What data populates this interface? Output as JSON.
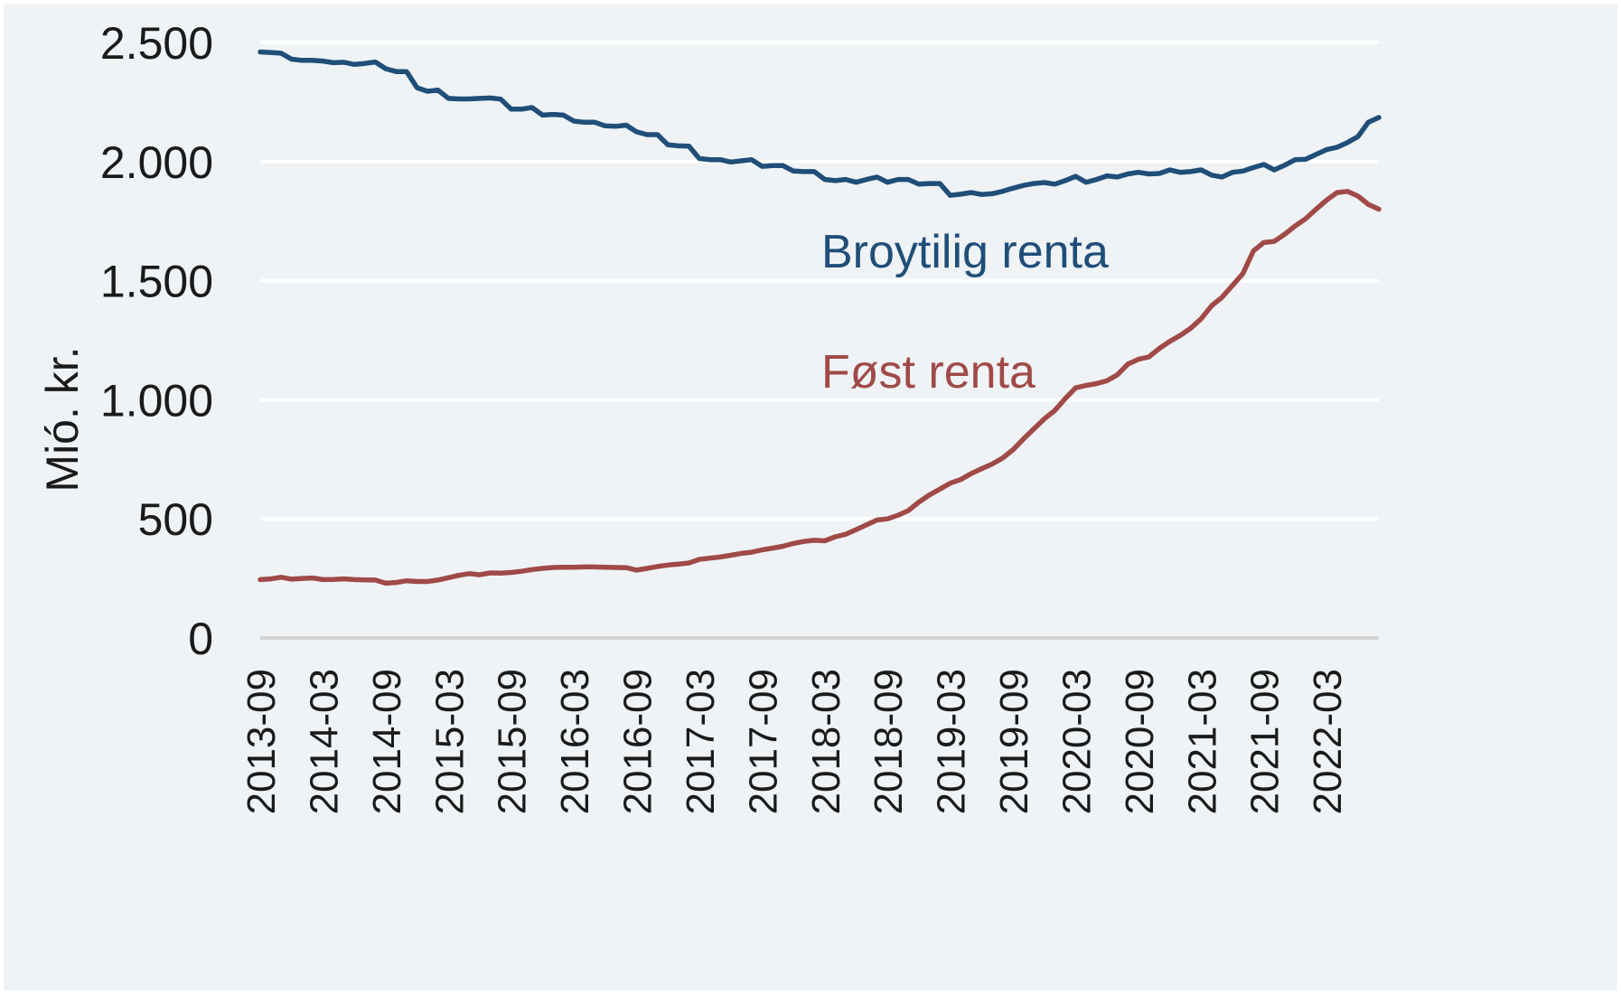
{
  "chart_data": {
    "type": "line",
    "title": "",
    "xlabel": "",
    "ylabel": "Mió. kr.",
    "ylim": [
      0,
      2500
    ],
    "yticks": [
      0,
      500,
      1000,
      1500,
      2000,
      2500
    ],
    "ytick_labels": [
      "0",
      "500",
      "1.000",
      "1.500",
      "2.000",
      "2.500"
    ],
    "xtick_labels": [
      "2013-09",
      "2014-03",
      "2014-09",
      "2015-03",
      "2015-09",
      "2016-03",
      "2016-09",
      "2017-03",
      "2017-09",
      "2018-03",
      "2018-09",
      "2019-03",
      "2019-09",
      "2020-03",
      "2020-09",
      "2021-03",
      "2021-09",
      "2022-03"
    ],
    "grid": true,
    "legend": "none",
    "x_start": "2013-09",
    "x_end": "2022-08",
    "series": [
      {
        "name": "Broytilig renta",
        "color": "#1f4e79",
        "values": [
          2460,
          2458,
          2455,
          2430,
          2425,
          2425,
          2422,
          2415,
          2417,
          2408,
          2412,
          2418,
          2390,
          2378,
          2378,
          2310,
          2295,
          2300,
          2265,
          2263,
          2263,
          2265,
          2267,
          2262,
          2220,
          2220,
          2227,
          2195,
          2198,
          2195,
          2170,
          2165,
          2165,
          2150,
          2148,
          2153,
          2125,
          2113,
          2113,
          2070,
          2066,
          2065,
          2013,
          2008,
          2008,
          1998,
          2003,
          2008,
          1980,
          1983,
          1983,
          1960,
          1958,
          1958,
          1925,
          1920,
          1925,
          1913,
          1925,
          1935,
          1913,
          1925,
          1925,
          1905,
          1908,
          1908,
          1858,
          1863,
          1870,
          1862,
          1865,
          1875,
          1888,
          1900,
          1908,
          1912,
          1905,
          1920,
          1938,
          1913,
          1925,
          1940,
          1935,
          1948,
          1955,
          1948,
          1950,
          1965,
          1955,
          1958,
          1965,
          1943,
          1935,
          1955,
          1960,
          1975,
          1988,
          1965,
          1985,
          2008,
          2010,
          2030,
          2050,
          2060,
          2080,
          2105,
          2165,
          2185
        ]
      },
      {
        "name": "Føst renta",
        "color": "#a04a48",
        "values": [
          245,
          248,
          255,
          247,
          250,
          252,
          245,
          246,
          248,
          245,
          244,
          243,
          230,
          233,
          240,
          237,
          237,
          243,
          253,
          263,
          270,
          265,
          273,
          272,
          275,
          280,
          287,
          292,
          296,
          297,
          297,
          298,
          298,
          297,
          296,
          295,
          285,
          292,
          300,
          306,
          310,
          315,
          330,
          335,
          340,
          347,
          355,
          360,
          370,
          377,
          385,
          397,
          405,
          410,
          408,
          425,
          435,
          455,
          475,
          495,
          500,
          515,
          535,
          570,
          600,
          625,
          650,
          665,
          690,
          710,
          730,
          755,
          790,
          835,
          878,
          920,
          955,
          1005,
          1050,
          1060,
          1068,
          1080,
          1105,
          1150,
          1170,
          1180,
          1215,
          1245,
          1270,
          1300,
          1340,
          1395,
          1430,
          1480,
          1530,
          1625,
          1660,
          1665,
          1695,
          1730,
          1760,
          1800,
          1838,
          1870,
          1875,
          1855,
          1820,
          1800
        ]
      }
    ],
    "annotations": [
      {
        "text": "Broytilig renta",
        "series": 0,
        "color": "#1f4e79"
      },
      {
        "text": "Føst renta",
        "series": 1,
        "color": "#a04a48"
      }
    ]
  }
}
